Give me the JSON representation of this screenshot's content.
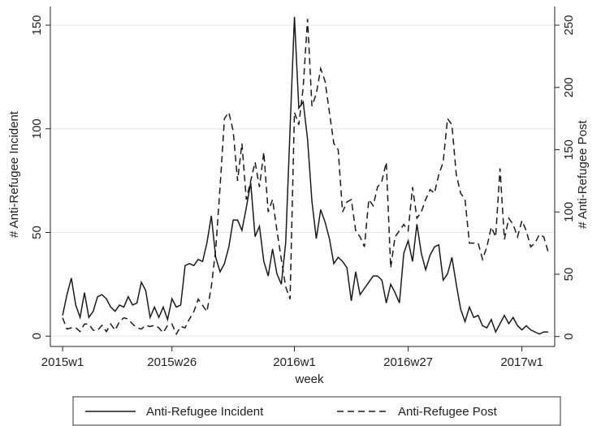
{
  "chart_data": {
    "type": "line",
    "x_label": "week",
    "y_label": "# Anti-Refugee Incident",
    "y2_label": "# Anti-Refugee Post",
    "x": [
      0,
      1,
      2,
      3,
      4,
      5,
      6,
      7,
      8,
      9,
      10,
      11,
      12,
      13,
      14,
      15,
      16,
      17,
      18,
      19,
      20,
      21,
      22,
      23,
      24,
      25,
      26,
      27,
      28,
      29,
      30,
      31,
      32,
      33,
      34,
      35,
      36,
      37,
      38,
      39,
      40,
      41,
      42,
      43,
      44,
      45,
      46,
      47,
      48,
      49,
      50,
      51,
      52,
      53,
      54,
      55,
      56,
      57,
      58,
      59,
      60,
      61,
      62,
      63,
      64,
      65,
      66,
      67,
      68,
      69,
      70,
      71,
      72,
      73,
      74,
      75,
      76,
      77,
      78,
      79,
      80,
      81,
      82,
      83,
      84,
      85,
      86,
      87,
      88,
      89,
      90,
      91,
      92,
      93,
      94,
      95,
      96,
      97,
      98,
      99,
      100,
      101,
      102,
      103,
      104,
      105,
      106,
      107,
      108,
      109,
      110,
      111
    ],
    "xlim": [
      -2.8,
      112.5
    ],
    "xticks": [
      {
        "value": 0,
        "label": "2015w1"
      },
      {
        "value": 25,
        "label": "2015w26"
      },
      {
        "value": 53,
        "label": "2016w1"
      },
      {
        "value": 79,
        "label": "2016w27"
      },
      {
        "value": 105,
        "label": "2017w1"
      }
    ],
    "ylim": [
      -5,
      159
    ],
    "yticks": [
      0,
      50,
      100,
      150
    ],
    "y2lim": [
      -8,
      265
    ],
    "y2ticks": [
      0,
      50,
      100,
      150,
      200,
      250
    ],
    "grid": true,
    "series": [
      {
        "name": "Anti-Refugee Incident",
        "color": "#1a1a1a",
        "dash": "solid",
        "values": [
          10,
          20,
          28,
          15,
          9,
          21,
          9,
          12,
          19,
          20,
          18,
          14,
          12,
          15,
          14,
          19,
          15,
          16,
          26,
          22,
          9,
          14,
          9,
          14,
          8,
          18,
          14,
          15,
          34,
          35,
          34,
          37,
          36,
          45,
          58,
          38,
          31,
          35,
          43,
          56,
          56,
          51,
          62,
          74,
          48,
          53,
          36,
          29,
          42,
          30,
          25,
          45,
          100,
          154,
          110,
          113,
          95,
          65,
          47,
          61,
          55,
          47,
          35,
          38,
          36,
          33,
          17,
          31,
          20,
          23,
          26,
          29,
          29,
          27,
          16,
          25,
          21,
          16,
          40,
          46,
          36,
          54,
          40,
          32,
          39,
          43,
          44,
          27,
          30,
          38,
          25,
          13,
          7,
          14,
          9,
          10,
          5,
          4,
          8,
          2,
          6,
          10,
          6,
          9,
          5,
          3,
          5,
          3,
          2,
          1,
          2,
          2
        ]
      },
      {
        "name": "Anti-Refugee Post",
        "color": "#1a1a1a",
        "dash": "dashed",
        "axis": "y2",
        "values": [
          15,
          6,
          7,
          7,
          4,
          10,
          10,
          5,
          5,
          9,
          4,
          10,
          5,
          12,
          15,
          14,
          10,
          7,
          6,
          9,
          8,
          9,
          7,
          3,
          9,
          10,
          2,
          8,
          7,
          14,
          20,
          30,
          25,
          20,
          40,
          70,
          120,
          175,
          180,
          165,
          125,
          155,
          110,
          125,
          140,
          120,
          148,
          100,
          110,
          85,
          62,
          40,
          30,
          180,
          170,
          200,
          255,
          185,
          195,
          215,
          205,
          180,
          155,
          150,
          100,
          108,
          110,
          85,
          80,
          72,
          110,
          105,
          120,
          125,
          140,
          55,
          80,
          85,
          90,
          85,
          120,
          95,
          100,
          110,
          118,
          115,
          130,
          140,
          175,
          170,
          130,
          115,
          110,
          75,
          75,
          75,
          62,
          72,
          88,
          80,
          135,
          78,
          95,
          90,
          80,
          93,
          85,
          72,
          75,
          82,
          80,
          68
        ]
      }
    ]
  }
}
